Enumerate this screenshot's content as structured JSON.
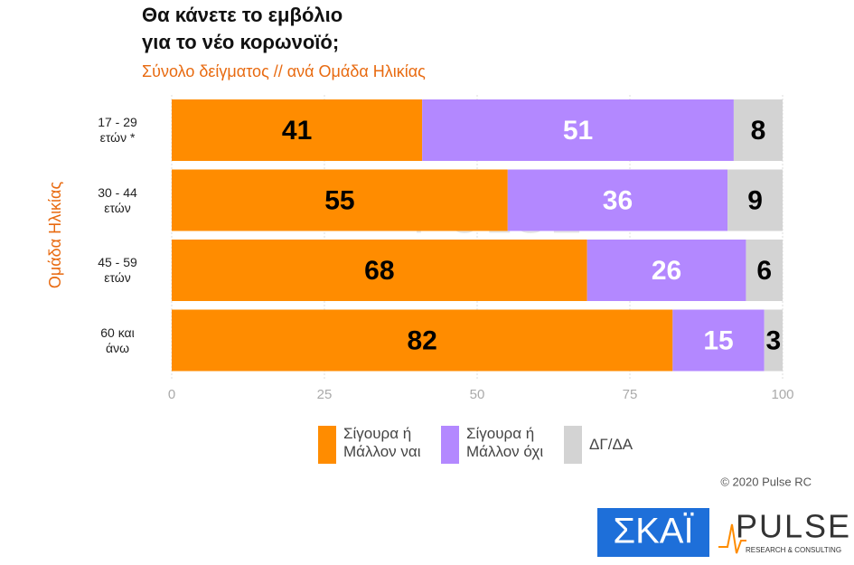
{
  "chart_data": {
    "type": "stacked-bar-horizontal",
    "title": [
      "Θα κάνετε το εμβόλιο",
      "για το νέο κορωνοϊό;"
    ],
    "subtitle": "Σύνολο δείγματος // ανά Ομάδα Ηλικίας",
    "y_label": "Ομάδα Ηλικίας",
    "categories": [
      "17 - 29 ετών *",
      "30 - 44 ετών",
      "45 - 59 ετών",
      "60 και άνω"
    ],
    "series": [
      {
        "name": "Σίγουρα ή Μάλλον ναι",
        "color": "#ff8c00",
        "label_color": "#000000",
        "values": [
          41,
          55,
          68,
          82
        ]
      },
      {
        "name": "Σίγουρα ή Μάλλον όχι",
        "color": "#b388ff",
        "label_color": "#ffffff",
        "values": [
          51,
          36,
          26,
          15
        ]
      },
      {
        "name": "ΔΓ/ΔΑ",
        "color": "#d3d3d3",
        "label_color": "#000000",
        "values": [
          8,
          9,
          6,
          3
        ]
      }
    ],
    "xlim": [
      0,
      100
    ],
    "xticks": [
      0,
      25,
      50,
      75,
      100
    ],
    "grid": true,
    "copyright": "© 2020 Pulse RC",
    "logos": {
      "skai": "ΣΚΑΪ",
      "pulse": "PULSE",
      "pulse_sub": "RESEARCH & CONSULTING"
    }
  }
}
